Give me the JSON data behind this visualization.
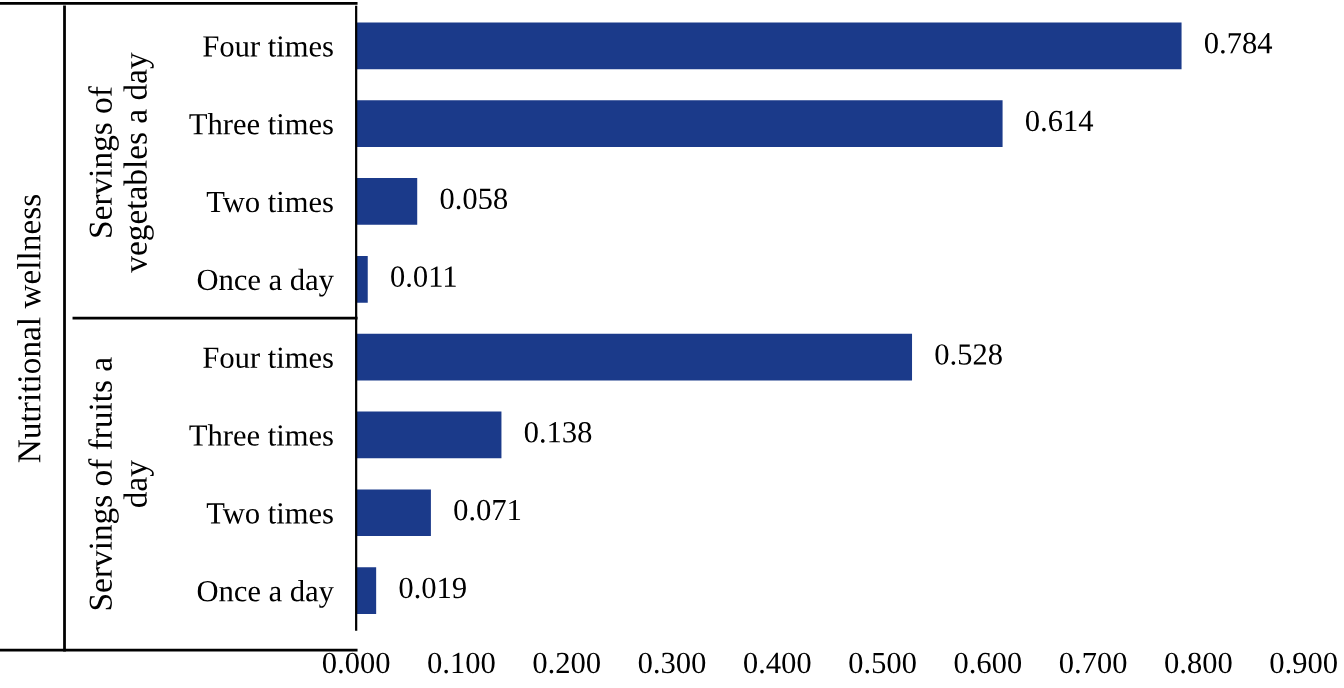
{
  "chart_data": {
    "type": "bar",
    "orientation": "horizontal",
    "categories": [
      "Four times",
      "Three times",
      "Two times",
      "Once a day",
      "Four times",
      "Three times",
      "Two times",
      "Once a day"
    ],
    "values": [
      0.784,
      0.614,
      0.058,
      0.011,
      0.528,
      0.138,
      0.071,
      0.019
    ],
    "color": "#1b3a8a",
    "xlim": [
      0,
      0.9
    ],
    "xticks": [
      {
        "value": 0,
        "label": "0.000"
      },
      {
        "value": 0.1,
        "label": "0.100"
      },
      {
        "value": 0.2,
        "label": "0.200"
      },
      {
        "value": 0.3,
        "label": "0.300"
      },
      {
        "value": 0.4,
        "label": "0.400"
      },
      {
        "value": 0.5,
        "label": "0.500"
      },
      {
        "value": 0.6,
        "label": "0.600"
      },
      {
        "value": 0.7,
        "label": "0.700"
      },
      {
        "value": 0.8,
        "label": "0.800"
      },
      {
        "value": 0.9,
        "label": "0.900"
      }
    ],
    "value_labels": [
      "0.784",
      "0.614",
      "0.058",
      "0.011",
      "0.528",
      "0.138",
      "0.071",
      "0.019"
    ],
    "annotations": [
      "Nutritional wellness",
      "Servings of\nvegetables a day",
      "Servings of fruits a\nday"
    ],
    "grid": false
  }
}
